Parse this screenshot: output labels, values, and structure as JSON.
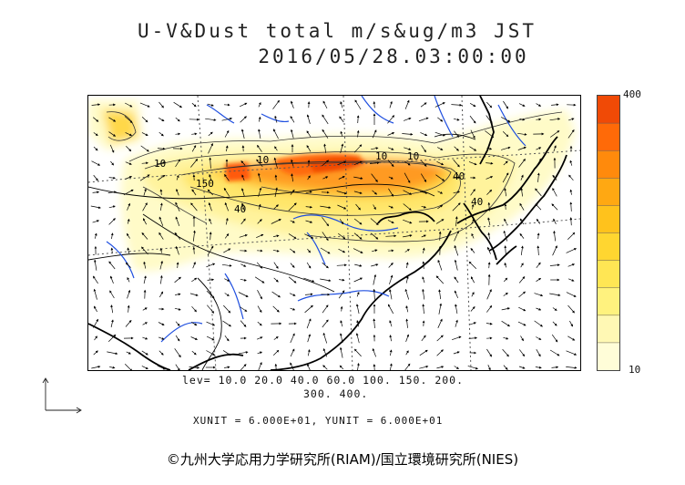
{
  "header": {
    "title_line1": "U-V&Dust total m/s&ug/m3 JST",
    "title_line2": "2016/05/28.03:00:00"
  },
  "colorbar": {
    "max_label": "400",
    "min_label": "10",
    "colors": [
      "#fffdd8",
      "#fff8b4",
      "#fff27e",
      "#ffe654",
      "#ffd630",
      "#ffc21c",
      "#ffa812",
      "#ff8a0c",
      "#ff6a08",
      "#f04a06"
    ]
  },
  "legend": {
    "levels_line1": "lev= 10.0 20.0 40.0 60.0 100. 150. 200.",
    "levels_line2": "300. 400.",
    "units": "XUNIT = 6.000E+01, YUNIT = 6.000E+01"
  },
  "contour_labels": [
    "10",
    "40",
    "150",
    "10",
    "40",
    "10",
    "40",
    "10"
  ],
  "footer": {
    "copyright": "©九州大学応用力学研究所(RIAM)/国立環境研究所(NIES)"
  },
  "map_colors": {
    "coast": "#000000",
    "rivers": "#1f4fe0",
    "graticule": "#555555"
  }
}
